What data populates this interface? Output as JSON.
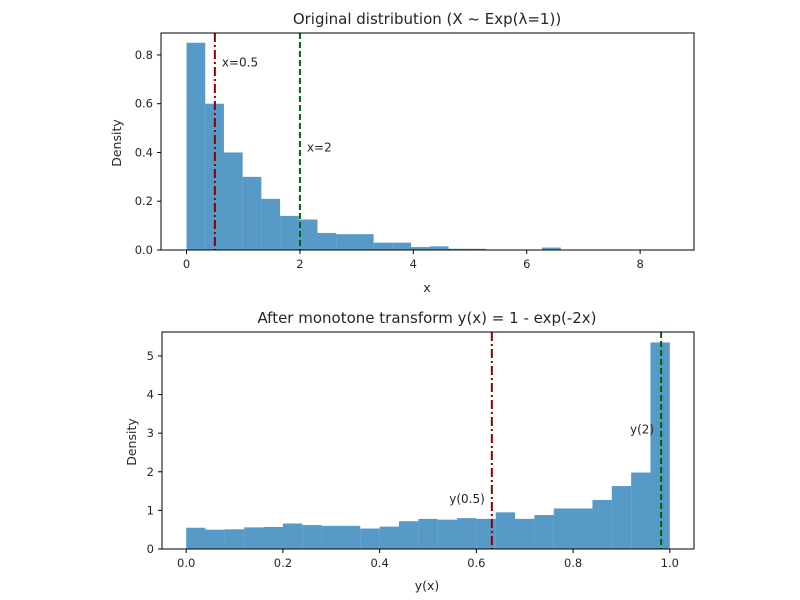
{
  "chart_data": [
    {
      "type": "bar",
      "title": "Original distribution (X ~ Exp(λ=1))",
      "xlabel": "x",
      "ylabel": "Density",
      "xlim": [
        -0.45,
        8.95
      ],
      "ylim": [
        0,
        0.89
      ],
      "xticks": [
        0,
        2,
        4,
        6,
        8
      ],
      "xtick_labels": [
        "0",
        "2",
        "4",
        "6",
        "8"
      ],
      "yticks": [
        0,
        0.2,
        0.4,
        0.6,
        0.8
      ],
      "ytick_labels": [
        "0.0",
        "0.2",
        "0.4",
        "0.6",
        "0.8"
      ],
      "bar_color": "#1f77b4",
      "bin_width": 0.33,
      "bin_starts": [
        0.0,
        0.33,
        0.66,
        0.99,
        1.32,
        1.65,
        1.98,
        2.31,
        2.64,
        2.97,
        3.3,
        3.63,
        3.96,
        4.29,
        4.62,
        4.95,
        5.28,
        5.61,
        5.94,
        6.27,
        6.6,
        6.93,
        7.26,
        7.59,
        7.92,
        8.25
      ],
      "values": [
        0.85,
        0.6,
        0.4,
        0.3,
        0.21,
        0.14,
        0.125,
        0.07,
        0.065,
        0.065,
        0.03,
        0.03,
        0.012,
        0.015,
        0.005,
        0.005,
        0.002,
        0.0,
        0.0,
        0.01,
        0.0,
        0.0,
        0.0,
        0.0,
        0.0,
        0.0
      ],
      "vlines": [
        {
          "x": 0.5,
          "label": "x=0.5",
          "color": "#8b0000",
          "style": "dashdot",
          "label_y": 0.77
        },
        {
          "x": 2,
          "label": "x=2",
          "color": "#006400",
          "style": "dashed",
          "label_y": 0.42
        }
      ]
    },
    {
      "type": "bar",
      "title": "After monotone transform y(x) = 1 - exp(-2x)",
      "xlabel": "y(x)",
      "ylabel": "Density",
      "xlim": [
        -0.05,
        1.05
      ],
      "ylim": [
        0,
        5.62
      ],
      "xticks": [
        0.0,
        0.2,
        0.4,
        0.6,
        0.8,
        1.0
      ],
      "xtick_labels": [
        "0.0",
        "0.2",
        "0.4",
        "0.6",
        "0.8",
        "1.0"
      ],
      "yticks": [
        0,
        1,
        2,
        3,
        4,
        5
      ],
      "ytick_labels": [
        "0",
        "1",
        "2",
        "3",
        "4",
        "5"
      ],
      "bar_color": "#1f77b4",
      "bin_width": 0.04,
      "bin_starts": [
        0.0,
        0.04,
        0.08,
        0.12,
        0.16,
        0.2,
        0.24,
        0.28,
        0.32,
        0.36,
        0.4,
        0.44,
        0.48,
        0.52,
        0.56,
        0.6,
        0.64,
        0.68,
        0.72,
        0.76,
        0.8,
        0.84,
        0.88,
        0.92,
        0.96
      ],
      "values": [
        0.55,
        0.5,
        0.51,
        0.56,
        0.57,
        0.66,
        0.62,
        0.6,
        0.6,
        0.53,
        0.58,
        0.72,
        0.78,
        0.76,
        0.8,
        0.78,
        0.95,
        0.78,
        0.88,
        1.05,
        1.05,
        1.27,
        1.63,
        1.98,
        5.35
      ],
      "vlines": [
        {
          "x": 0.632,
          "label": "y(0.5)",
          "color": "#8b0000",
          "style": "dashdot",
          "label_y": 1.3
        },
        {
          "x": 0.982,
          "label": "y(2)",
          "color": "#006400",
          "style": "dashed",
          "label_y": 3.1
        }
      ]
    }
  ]
}
